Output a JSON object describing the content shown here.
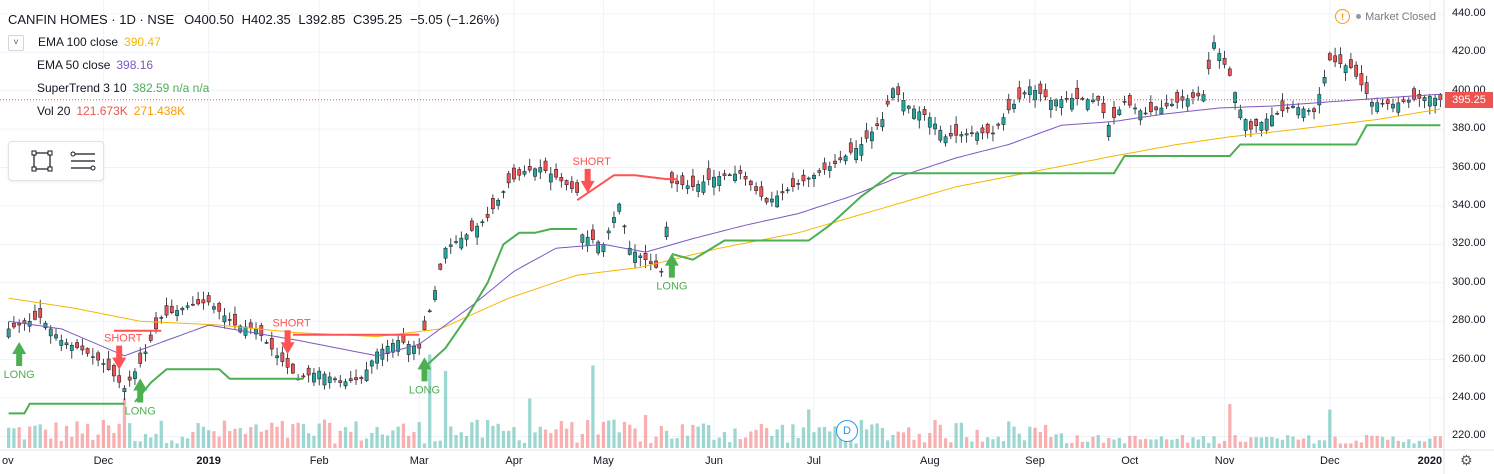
{
  "header": {
    "symbol": "CANFIN HOMES · 1D · NSE",
    "open": "O400.50",
    "high": "H402.35",
    "low": "L392.85",
    "close": "C395.25",
    "change": "−5.05 (−1.26%)",
    "status_text": "Market Closed",
    "collapse_glyph": "˅"
  },
  "indicators": [
    {
      "name": "EMA 100 close",
      "value": "390.47",
      "color": "#f5b800"
    },
    {
      "name": "EMA 50 close",
      "value": "398.16",
      "color": "#7e57c2"
    },
    {
      "name": "SuperTrend 3 10",
      "value": "382.59  n/a  n/a",
      "color": "#4caf50"
    },
    {
      "name": "Vol 20",
      "value": "121.673K",
      "value2": "271.438K",
      "color": "#ef5350",
      "color2": "#ff9800"
    }
  ],
  "toolbox": {
    "icons": [
      "rectangle-icon",
      "lines-icon"
    ]
  },
  "last_price_label": "395.25",
  "dividend_marker": "D",
  "chart_data": {
    "type": "candlestick",
    "y_ticks": [
      "440.00",
      "420.00",
      "400.00",
      "380.00",
      "360.00",
      "340.00",
      "320.00",
      "300.00",
      "280.00",
      "260.00",
      "240.00",
      "220.00"
    ],
    "ylim": [
      214,
      442
    ],
    "x_ticks": [
      {
        "label": "Dec",
        "idx": 18,
        "bold": false
      },
      {
        "label": "2019",
        "idx": 38,
        "bold": true
      },
      {
        "label": "Feb",
        "idx": 59,
        "bold": false
      },
      {
        "label": "Mar",
        "idx": 78,
        "bold": false
      },
      {
        "label": "Apr",
        "idx": 96,
        "bold": false
      },
      {
        "label": "May",
        "idx": 113,
        "bold": false
      },
      {
        "label": "Jun",
        "idx": 134,
        "bold": false
      },
      {
        "label": "Jul",
        "idx": 153,
        "bold": false
      },
      {
        "label": "Aug",
        "idx": 175,
        "bold": false
      },
      {
        "label": "Sep",
        "idx": 195,
        "bold": false
      },
      {
        "label": "Oct",
        "idx": 213,
        "bold": false
      },
      {
        "label": "Nov",
        "idx": 231,
        "bold": false
      },
      {
        "label": "Dec",
        "idx": 251,
        "bold": false
      },
      {
        "label": "2020",
        "idx": 270,
        "bold": true
      }
    ],
    "x_tick_first": "ov",
    "close_anchors": [
      [
        0,
        276
      ],
      [
        6,
        282
      ],
      [
        10,
        270
      ],
      [
        14,
        265
      ],
      [
        18,
        258
      ],
      [
        22,
        245
      ],
      [
        25,
        258
      ],
      [
        29,
        282
      ],
      [
        34,
        288
      ],
      [
        38,
        290
      ],
      [
        43,
        278
      ],
      [
        47,
        276
      ],
      [
        51,
        262
      ],
      [
        55,
        250
      ],
      [
        59,
        254
      ],
      [
        63,
        248
      ],
      [
        67,
        250
      ],
      [
        70,
        264
      ],
      [
        74,
        270
      ],
      [
        78,
        266
      ],
      [
        80,
        285
      ],
      [
        83,
        318
      ],
      [
        87,
        325
      ],
      [
        91,
        334
      ],
      [
        95,
        352
      ],
      [
        98,
        358
      ],
      [
        101,
        360
      ],
      [
        104,
        355
      ],
      [
        108,
        347
      ],
      [
        109,
        325
      ],
      [
        113,
        320
      ],
      [
        116,
        341
      ],
      [
        118,
        318
      ],
      [
        121,
        312
      ],
      [
        124,
        306
      ],
      [
        126,
        352
      ],
      [
        130,
        350
      ],
      [
        134,
        355
      ],
      [
        139,
        357
      ],
      [
        144,
        342
      ],
      [
        149,
        350
      ],
      [
        153,
        356
      ],
      [
        157,
        362
      ],
      [
        162,
        372
      ],
      [
        166,
        385
      ],
      [
        168,
        401
      ],
      [
        171,
        392
      ],
      [
        175,
        386
      ],
      [
        178,
        376
      ],
      [
        183,
        378
      ],
      [
        187,
        378
      ],
      [
        190,
        390
      ],
      [
        194,
        402
      ],
      [
        198,
        395
      ],
      [
        202,
        396
      ],
      [
        207,
        395
      ],
      [
        209,
        382
      ],
      [
        212,
        394
      ],
      [
        216,
        388
      ],
      [
        220,
        392
      ],
      [
        223,
        395
      ],
      [
        227,
        398
      ],
      [
        229,
        425
      ],
      [
        232,
        408
      ],
      [
        234,
        390
      ],
      [
        236,
        380
      ],
      [
        240,
        387
      ],
      [
        244,
        392
      ],
      [
        248,
        389
      ],
      [
        251,
        416
      ],
      [
        255,
        412
      ],
      [
        259,
        394
      ],
      [
        263,
        393
      ],
      [
        266,
        395
      ],
      [
        270,
        397
      ],
      [
        272,
        395.25
      ]
    ],
    "ema50_anchors": [
      [
        0,
        280
      ],
      [
        10,
        276
      ],
      [
        22,
        262
      ],
      [
        38,
        278
      ],
      [
        55,
        270
      ],
      [
        70,
        262
      ],
      [
        78,
        268
      ],
      [
        88,
        288
      ],
      [
        96,
        306
      ],
      [
        104,
        318
      ],
      [
        113,
        320
      ],
      [
        121,
        316
      ],
      [
        130,
        323
      ],
      [
        140,
        330
      ],
      [
        150,
        336
      ],
      [
        160,
        345
      ],
      [
        170,
        356
      ],
      [
        180,
        365
      ],
      [
        190,
        372
      ],
      [
        200,
        382
      ],
      [
        210,
        384
      ],
      [
        220,
        388
      ],
      [
        230,
        391
      ],
      [
        240,
        392
      ],
      [
        250,
        394
      ],
      [
        260,
        396
      ],
      [
        272,
        398.16
      ]
    ],
    "ema100_anchors": [
      [
        0,
        292
      ],
      [
        12,
        287
      ],
      [
        25,
        280
      ],
      [
        40,
        278
      ],
      [
        55,
        274
      ],
      [
        70,
        272
      ],
      [
        82,
        276
      ],
      [
        95,
        292
      ],
      [
        108,
        304
      ],
      [
        120,
        308
      ],
      [
        135,
        318
      ],
      [
        150,
        326
      ],
      [
        165,
        338
      ],
      [
        180,
        350
      ],
      [
        195,
        358
      ],
      [
        210,
        366
      ],
      [
        222,
        372
      ],
      [
        232,
        376
      ],
      [
        245,
        380
      ],
      [
        260,
        385
      ],
      [
        272,
        390.47
      ]
    ],
    "supertrend_segments": [
      {
        "dir": "up",
        "pts": [
          [
            0,
            232
          ],
          [
            3,
            232
          ],
          [
            4,
            237
          ],
          [
            22,
            237
          ]
        ]
      },
      {
        "dir": "down",
        "pts": [
          [
            20,
            275
          ],
          [
            29,
            275
          ]
        ]
      },
      {
        "dir": "up",
        "pts": [
          [
            24,
            238
          ],
          [
            27,
            248
          ],
          [
            30,
            255
          ],
          [
            40,
            255
          ],
          [
            42,
            250
          ],
          [
            56,
            250
          ]
        ]
      },
      {
        "dir": "down",
        "pts": [
          [
            54,
            273
          ],
          [
            78,
            273
          ]
        ]
      },
      {
        "dir": "up",
        "pts": [
          [
            79,
            256
          ],
          [
            83,
            266
          ],
          [
            87,
            282
          ],
          [
            91,
            300
          ],
          [
            94,
            320
          ],
          [
            97,
            326
          ],
          [
            100,
            326
          ],
          [
            103,
            328
          ],
          [
            108,
            328
          ]
        ]
      },
      {
        "dir": "down",
        "pts": [
          [
            108,
            343
          ],
          [
            115,
            356
          ],
          [
            119,
            356
          ],
          [
            125,
            354
          ],
          [
            127,
            354
          ]
        ]
      },
      {
        "dir": "up",
        "pts": [
          [
            126,
            315
          ],
          [
            130,
            312
          ],
          [
            133,
            317
          ],
          [
            136,
            322
          ],
          [
            152,
            322
          ],
          [
            156,
            330
          ],
          [
            162,
            345
          ],
          [
            168,
            357
          ],
          [
            210,
            357
          ],
          [
            212,
            366
          ],
          [
            232,
            366
          ],
          [
            234,
            372
          ],
          [
            256,
            372
          ],
          [
            258,
            382
          ],
          [
            272,
            382
          ]
        ]
      }
    ],
    "signals": [
      {
        "type": "long",
        "text": "LONG",
        "idx": 2,
        "price": 264,
        "label_below": true
      },
      {
        "type": "short",
        "text": "SHORT",
        "idx": 21,
        "price": 260,
        "label_above": true
      },
      {
        "type": "long",
        "text": "LONG",
        "idx": 25,
        "price": 245,
        "label_below": true
      },
      {
        "type": "short",
        "text": "SHORT",
        "idx": 53,
        "price": 268,
        "label_above": true
      },
      {
        "type": "long",
        "text": "LONG",
        "idx": 79,
        "price": 256,
        "label_below": true
      },
      {
        "type": "short",
        "text": "SHORT",
        "idx": 110,
        "price": 352,
        "label_above": true
      },
      {
        "type": "long",
        "text": "LONG",
        "idx": 126,
        "price": 310,
        "label_below": true
      }
    ],
    "volume_spikes": [
      [
        80,
        0.85
      ],
      [
        83,
        0.7
      ],
      [
        111,
        0.75
      ],
      [
        22,
        0.45
      ],
      [
        152,
        0.35
      ],
      [
        232,
        0.4
      ],
      [
        251,
        0.35
      ],
      [
        121,
        0.3
      ],
      [
        99,
        0.45
      ]
    ],
    "last_price": 395.25,
    "series": [
      {
        "name": "EMA 100 close"
      },
      {
        "name": "EMA 50 close"
      },
      {
        "name": "SuperTrend 3 10"
      },
      {
        "name": "Vol 20"
      }
    ]
  }
}
